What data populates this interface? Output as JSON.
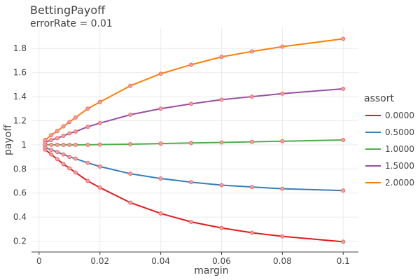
{
  "chart_data": {
    "type": "line",
    "title": "BettingPayoff",
    "subtitle": "errorRate = 0.01",
    "xlabel": "margin",
    "ylabel": "payoff",
    "xlim": [
      -0.0025,
      0.105
    ],
    "ylim": [
      0.11,
      1.97
    ],
    "xticks": [
      0,
      0.02,
      0.04,
      0.06,
      0.08,
      0.1
    ],
    "xtick_labels": [
      "0",
      "0.02",
      "0.04",
      "0.06",
      "0.08",
      "0.1"
    ],
    "yticks": [
      0.2,
      0.4,
      0.6,
      0.8,
      1,
      1.2,
      1.4,
      1.6,
      1.8
    ],
    "ytick_labels": [
      "0.2",
      "0.4",
      "0.6",
      "0.8",
      "1",
      "1.2",
      "1.4",
      "1.6",
      "1.8"
    ],
    "grid": true,
    "legend_title": "assort",
    "legend_placement": "right",
    "marker_color": "#f06464",
    "x": [
      0.002,
      0.004,
      0.006,
      0.008,
      0.01,
      0.012,
      0.016,
      0.02,
      0.03,
      0.04,
      0.05,
      0.06,
      0.07,
      0.08,
      0.1
    ],
    "series": [
      {
        "name": "0.0000",
        "color": "#e41a1c",
        "values": [
          0.96,
          0.92,
          0.88,
          0.84,
          0.805,
          0.77,
          0.7,
          0.645,
          0.52,
          0.43,
          0.36,
          0.31,
          0.27,
          0.24,
          0.195
        ]
      },
      {
        "name": "0.5000",
        "color": "#377eb8",
        "values": [
          0.98,
          0.958,
          0.94,
          0.92,
          0.9,
          0.885,
          0.85,
          0.82,
          0.76,
          0.72,
          0.69,
          0.665,
          0.65,
          0.635,
          0.62
        ]
      },
      {
        "name": "1.0000",
        "color": "#4daf4a",
        "values": [
          1.0,
          1.0,
          1.0,
          1.0,
          1.0,
          1.0,
          1.0,
          1.002,
          1.005,
          1.01,
          1.015,
          1.02,
          1.025,
          1.03,
          1.04
        ]
      },
      {
        "name": "1.5000",
        "color": "#984ea3",
        "values": [
          1.02,
          1.04,
          1.055,
          1.075,
          1.095,
          1.11,
          1.15,
          1.18,
          1.25,
          1.3,
          1.34,
          1.375,
          1.4,
          1.425,
          1.465
        ]
      },
      {
        "name": "2.0000",
        "color": "#ff7f00",
        "values": [
          1.04,
          1.08,
          1.115,
          1.153,
          1.19,
          1.227,
          1.3,
          1.355,
          1.49,
          1.59,
          1.665,
          1.73,
          1.775,
          1.815,
          1.88
        ]
      }
    ]
  }
}
